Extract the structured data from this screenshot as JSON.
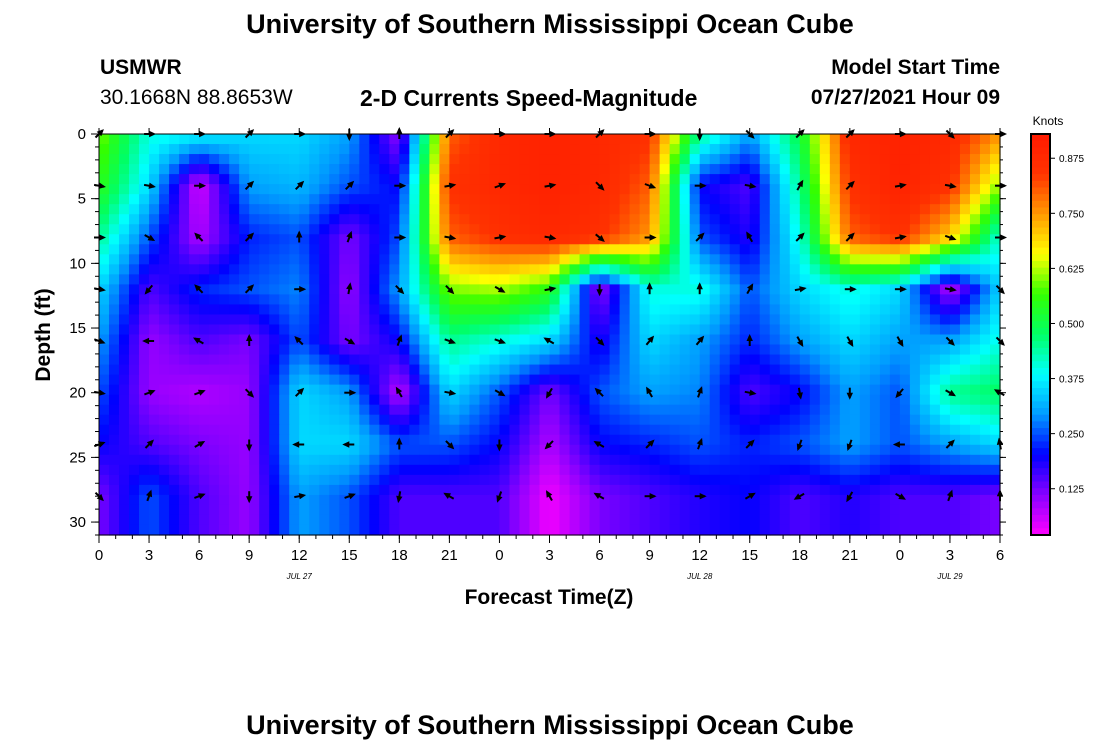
{
  "header": {
    "title": "University of Southern Mississippi Ocean Cube",
    "station": "USMWR",
    "coords": "30.1668N  88.8653W",
    "subtitle": "2-D Currents Speed-Magnitude",
    "model_start_label": "Model Start Time",
    "model_start_value": "07/27/2021 Hour 09",
    "footer_title": "University of Southern Mississippi Ocean Cube"
  },
  "colors": {
    "scale": [
      "#ff00ff",
      "#8800ff",
      "#0000ff",
      "#0099ff",
      "#00ffff",
      "#00ff66",
      "#33ff00",
      "#ffff00",
      "#ff9900",
      "#ff3300",
      "#ff1a00"
    ],
    "arrow": "#000000",
    "axis": "#000000"
  },
  "chart_data": {
    "type": "heatmap",
    "title": "2-D Currents Speed-Magnitude",
    "xlabel": "Forecast Time(Z)",
    "ylabel": "Depth (ft)",
    "colorbar_label": "Knots",
    "colorbar_ticks": [
      "0.125",
      "0.250",
      "0.375",
      "0.500",
      "0.625",
      "0.750",
      "0.875"
    ],
    "colorbar_range": [
      0.02,
      0.93
    ],
    "x_ticks": [
      "0",
      "3",
      "6",
      "9",
      "12",
      "15",
      "18",
      "21",
      "0",
      "3",
      "6",
      "9",
      "12",
      "15",
      "18",
      "21",
      "0",
      "3",
      "6"
    ],
    "x_range_hours": [
      0,
      54
    ],
    "date_labels": [
      {
        "text": "JUL 27",
        "hour": 12
      },
      {
        "text": "JUL 28",
        "hour": 36
      },
      {
        "text": "JUL 29",
        "hour": 51
      }
    ],
    "y_ticks": [
      "0",
      "5",
      "10",
      "15",
      "20",
      "25",
      "30"
    ],
    "ylim": [
      0,
      31
    ],
    "depths": [
      0,
      4,
      8,
      12,
      16,
      20,
      24,
      28
    ],
    "hours": [
      0,
      3,
      6,
      9,
      12,
      15,
      18,
      21,
      24,
      27,
      30,
      33,
      36,
      39,
      42,
      45,
      48,
      51,
      54
    ],
    "speeds": [
      [
        0.6,
        0.4,
        0.38,
        0.35,
        0.35,
        0.3,
        0.1,
        0.8,
        0.88,
        0.9,
        0.88,
        0.85,
        0.45,
        0.3,
        0.5,
        0.88,
        0.9,
        0.88,
        0.75
      ],
      [
        0.55,
        0.35,
        0.05,
        0.3,
        0.32,
        0.25,
        0.2,
        0.85,
        0.88,
        0.9,
        0.88,
        0.8,
        0.2,
        0.15,
        0.45,
        0.85,
        0.9,
        0.85,
        0.6
      ],
      [
        0.45,
        0.25,
        0.08,
        0.22,
        0.25,
        0.12,
        0.25,
        0.8,
        0.85,
        0.88,
        0.85,
        0.75,
        0.25,
        0.18,
        0.4,
        0.8,
        0.85,
        0.7,
        0.4
      ],
      [
        0.35,
        0.15,
        0.22,
        0.25,
        0.28,
        0.1,
        0.3,
        0.6,
        0.62,
        0.55,
        0.1,
        0.4,
        0.4,
        0.25,
        0.35,
        0.4,
        0.35,
        0.08,
        0.35
      ],
      [
        0.3,
        0.1,
        0.15,
        0.12,
        0.25,
        0.12,
        0.2,
        0.45,
        0.4,
        0.35,
        0.18,
        0.35,
        0.3,
        0.22,
        0.3,
        0.35,
        0.3,
        0.3,
        0.4
      ],
      [
        0.25,
        0.1,
        0.08,
        0.1,
        0.35,
        0.3,
        0.07,
        0.35,
        0.25,
        0.12,
        0.25,
        0.3,
        0.28,
        0.15,
        0.2,
        0.3,
        0.25,
        0.45,
        0.48
      ],
      [
        0.2,
        0.15,
        0.12,
        0.1,
        0.35,
        0.35,
        0.25,
        0.25,
        0.2,
        0.08,
        0.2,
        0.22,
        0.25,
        0.22,
        0.25,
        0.3,
        0.25,
        0.3,
        0.35
      ],
      [
        0.12,
        0.25,
        0.15,
        0.1,
        0.3,
        0.25,
        0.15,
        0.15,
        0.15,
        0.03,
        0.12,
        0.15,
        0.18,
        0.2,
        0.15,
        0.18,
        0.15,
        0.15,
        0.12
      ]
    ],
    "arrow_directions_deg": [
      [
        45,
        90,
        90,
        45,
        90,
        180,
        0,
        45,
        90,
        90,
        45,
        90,
        180,
        135,
        45,
        45,
        90,
        135,
        90
      ],
      [
        100,
        100,
        90,
        45,
        45,
        45,
        90,
        80,
        70,
        80,
        135,
        110,
        90,
        100,
        30,
        45,
        80,
        100,
        90
      ],
      [
        90,
        120,
        315,
        45,
        0,
        20,
        90,
        100,
        80,
        100,
        130,
        90,
        45,
        330,
        45,
        45,
        80,
        110,
        90
      ],
      [
        100,
        220,
        315,
        45,
        90,
        10,
        135,
        135,
        120,
        80,
        180,
        0,
        0,
        30,
        80,
        90,
        90,
        100,
        135
      ],
      [
        110,
        270,
        300,
        0,
        315,
        120,
        20,
        110,
        110,
        300,
        135,
        40,
        40,
        0,
        150,
        150,
        150,
        135,
        135
      ],
      [
        100,
        70,
        70,
        135,
        45,
        90,
        330,
        100,
        120,
        210,
        315,
        330,
        20,
        100,
        170,
        180,
        220,
        120,
        300
      ],
      [
        70,
        45,
        60,
        180,
        270,
        270,
        0,
        135,
        180,
        225,
        300,
        45,
        20,
        45,
        200,
        200,
        270,
        45,
        350
      ],
      [
        135,
        20,
        70,
        180,
        80,
        70,
        190,
        300,
        200,
        330,
        300,
        90,
        90,
        60,
        240,
        210,
        120,
        20,
        0
      ]
    ]
  }
}
